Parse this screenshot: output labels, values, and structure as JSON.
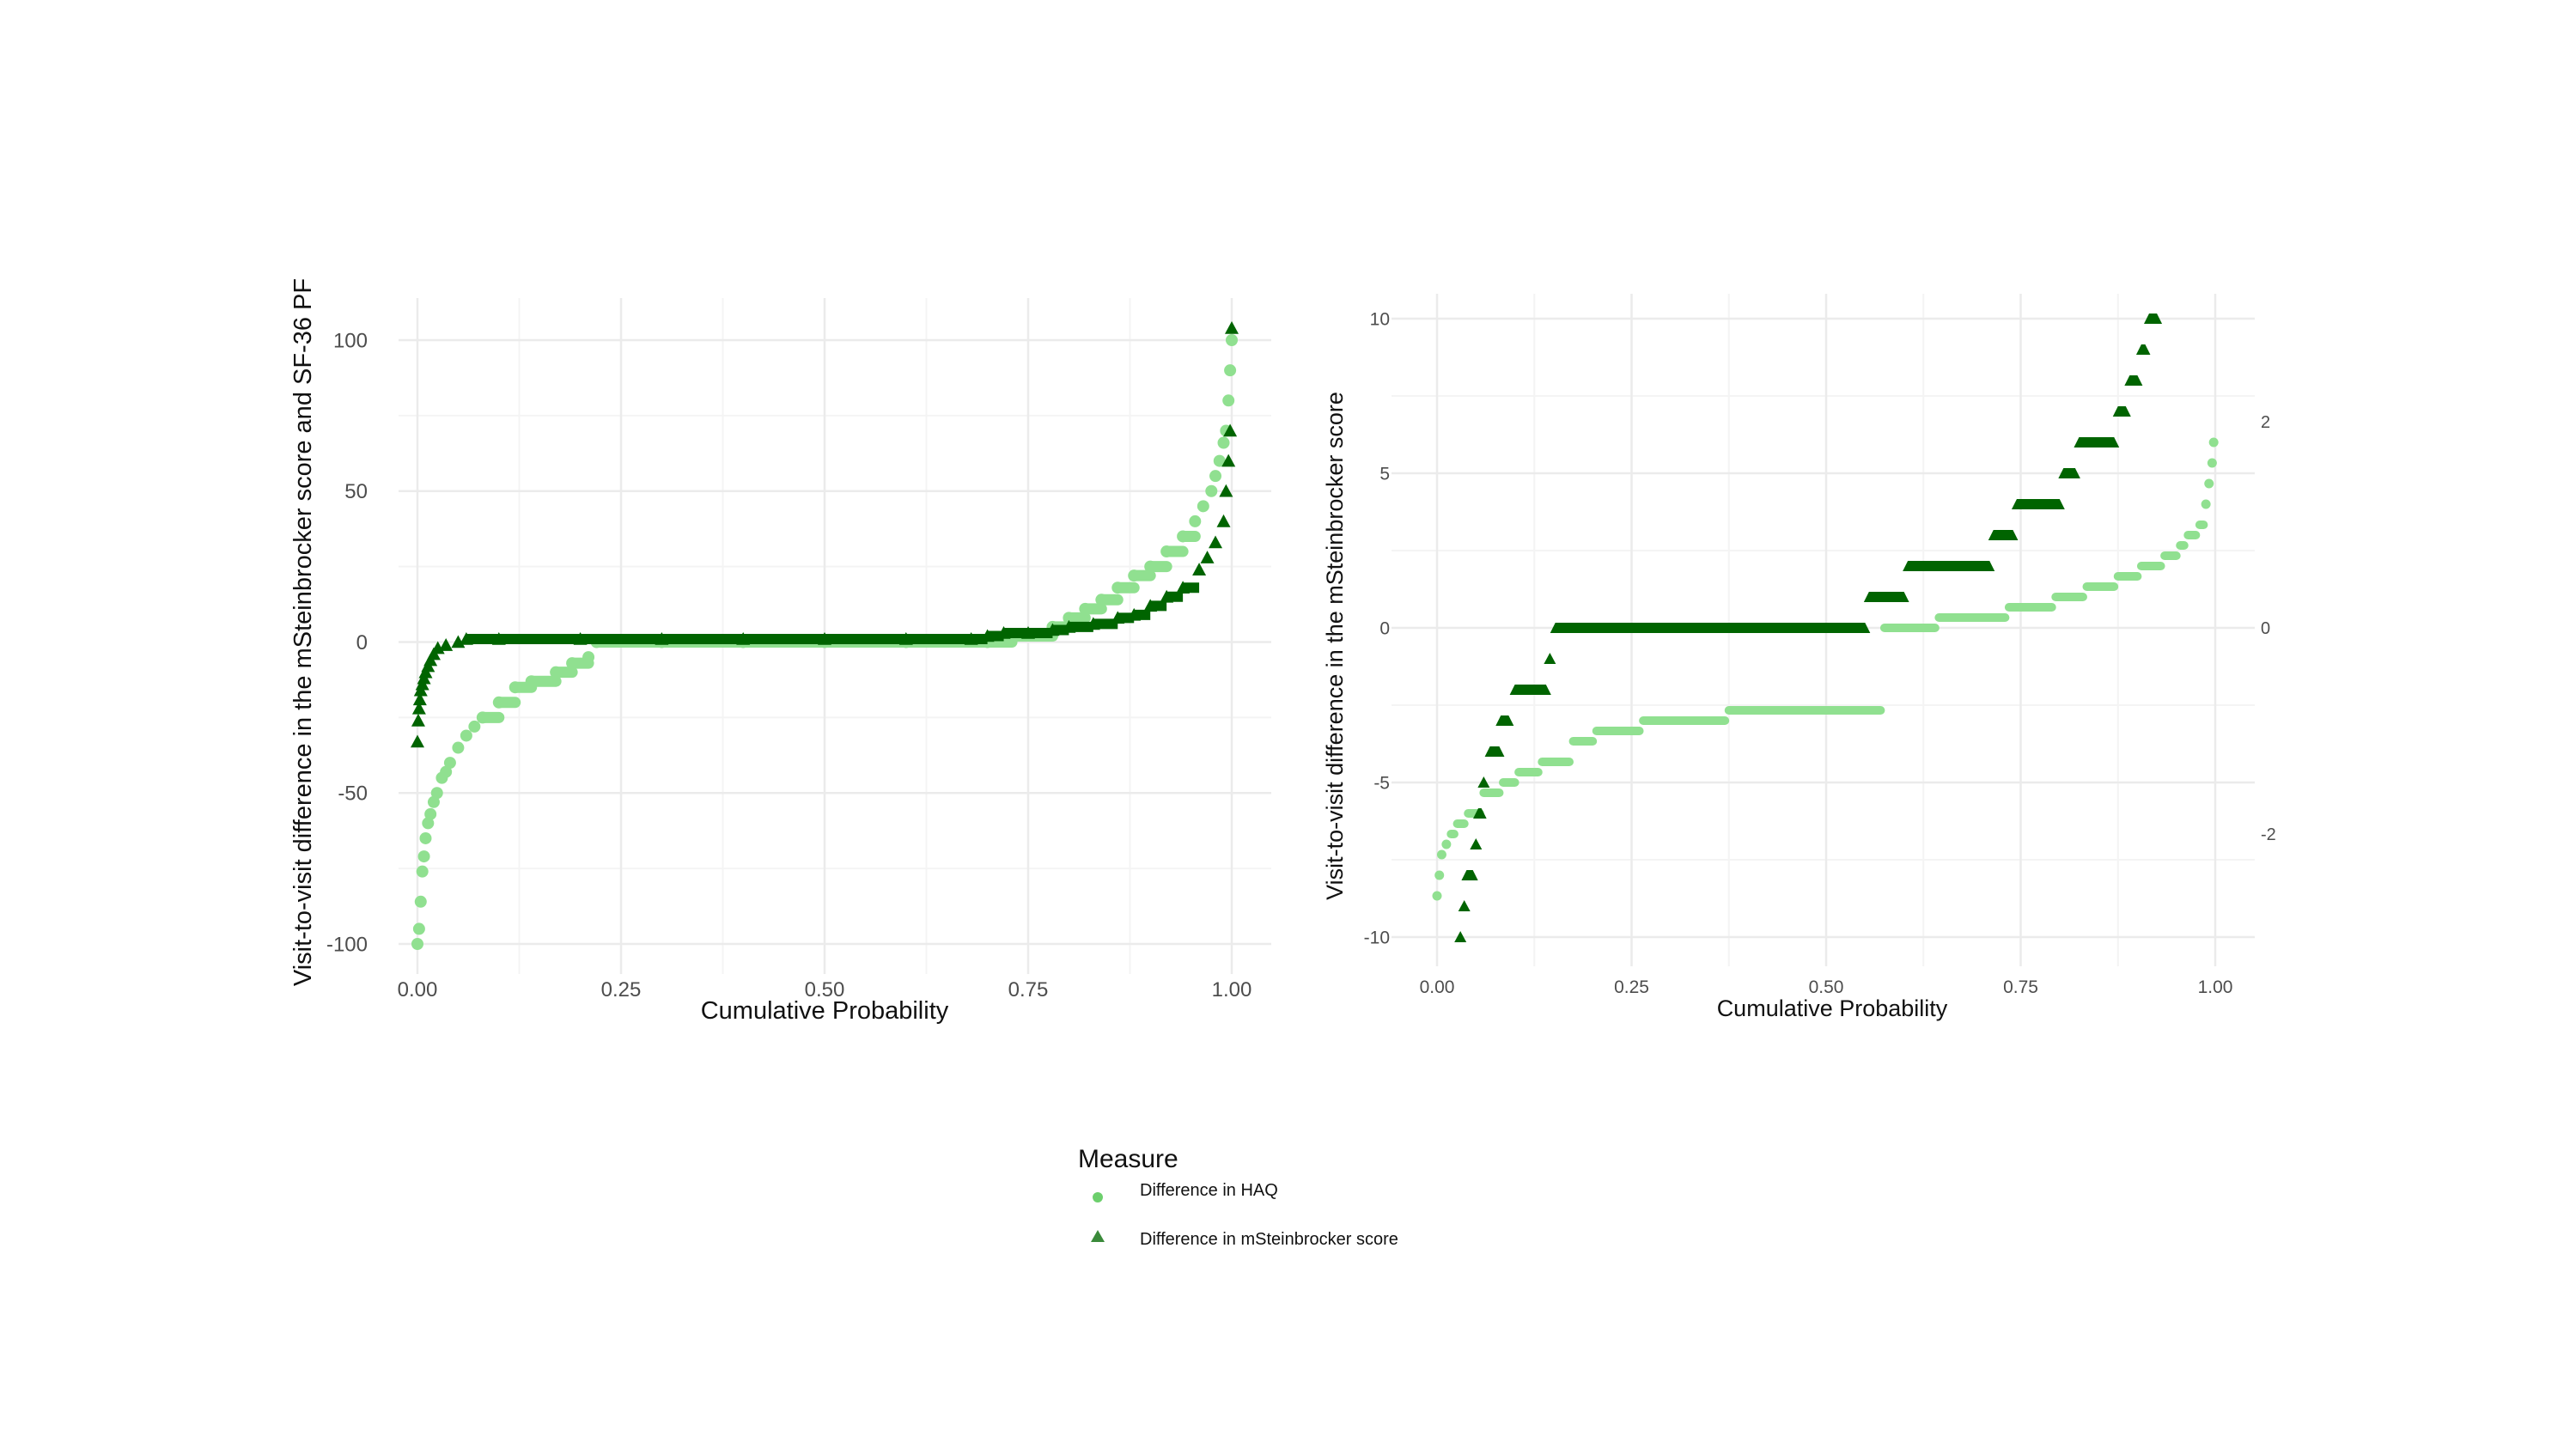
{
  "colors": {
    "light_green": "#90e090",
    "dark_green": "#006400",
    "grid": "#ebebeb"
  },
  "legend": {
    "title": "Measure",
    "items": [
      {
        "label": "Difference in HAQ",
        "shape": "circle",
        "color": "#6ccf6c"
      },
      {
        "label": "Difference in mSteinbrocker score",
        "shape": "triangle",
        "color": "#3a8a3a"
      }
    ]
  },
  "chart_data": [
    {
      "type": "scatter",
      "xlabel": "Cumulative Probability",
      "ylabel": "Visit-to-visit difference in the mSteinbrocker score and SF-36 PF",
      "xlim": [
        0,
        1
      ],
      "ylim": [
        -100,
        100
      ],
      "x_ticks": [
        "0.00",
        "0.25",
        "0.50",
        "0.75",
        "1.00"
      ],
      "y_ticks": [
        "-100",
        "-50",
        "0",
        "50",
        "100"
      ],
      "grid": true,
      "series": [
        {
          "name": "Difference in HAQ",
          "marker": "circle",
          "color": "#90e090",
          "points": [
            [
              0.0,
              -100
            ],
            [
              0.002,
              -95
            ],
            [
              0.004,
              -86
            ],
            [
              0.006,
              -76
            ],
            [
              0.008,
              -71
            ],
            [
              0.01,
              -65
            ],
            [
              0.013,
              -60
            ],
            [
              0.016,
              -57
            ],
            [
              0.02,
              -53
            ],
            [
              0.024,
              -50
            ],
            [
              0.03,
              -45
            ],
            [
              0.035,
              -43
            ],
            [
              0.04,
              -40
            ],
            [
              0.05,
              -35
            ],
            [
              0.06,
              -31
            ],
            [
              0.07,
              -28
            ],
            [
              0.08,
              -25
            ],
            [
              0.1,
              -20
            ],
            [
              0.12,
              -15
            ],
            [
              0.14,
              -13
            ],
            [
              0.17,
              -10
            ],
            [
              0.19,
              -7
            ],
            [
              0.21,
              -5
            ],
            [
              0.22,
              0
            ],
            [
              0.3,
              0
            ],
            [
              0.4,
              0
            ],
            [
              0.5,
              0
            ],
            [
              0.6,
              0
            ],
            [
              0.7,
              0
            ],
            [
              0.73,
              2
            ],
            [
              0.78,
              5
            ],
            [
              0.8,
              8
            ],
            [
              0.82,
              11
            ],
            [
              0.84,
              14
            ],
            [
              0.86,
              18
            ],
            [
              0.88,
              22
            ],
            [
              0.9,
              25
            ],
            [
              0.92,
              30
            ],
            [
              0.94,
              35
            ],
            [
              0.955,
              40
            ],
            [
              0.965,
              45
            ],
            [
              0.975,
              50
            ],
            [
              0.98,
              55
            ],
            [
              0.985,
              60
            ],
            [
              0.99,
              66
            ],
            [
              0.993,
              70
            ],
            [
              0.996,
              80
            ],
            [
              0.998,
              90
            ],
            [
              1.0,
              100
            ]
          ]
        },
        {
          "name": "Difference in mSteinbrocker score",
          "marker": "triangle",
          "color": "#006400",
          "points": [
            [
              0.0,
              -33
            ],
            [
              0.001,
              -26
            ],
            [
              0.002,
              -22
            ],
            [
              0.003,
              -19
            ],
            [
              0.004,
              -16
            ],
            [
              0.006,
              -14
            ],
            [
              0.008,
              -12
            ],
            [
              0.01,
              -10
            ],
            [
              0.013,
              -8
            ],
            [
              0.016,
              -6
            ],
            [
              0.02,
              -4
            ],
            [
              0.025,
              -2
            ],
            [
              0.035,
              -1
            ],
            [
              0.05,
              0
            ],
            [
              0.06,
              1
            ],
            [
              0.1,
              1
            ],
            [
              0.2,
              1
            ],
            [
              0.3,
              1
            ],
            [
              0.4,
              1
            ],
            [
              0.5,
              1
            ],
            [
              0.6,
              1
            ],
            [
              0.68,
              1
            ],
            [
              0.7,
              2
            ],
            [
              0.72,
              3
            ],
            [
              0.75,
              3
            ],
            [
              0.78,
              4
            ],
            [
              0.8,
              5
            ],
            [
              0.83,
              6
            ],
            [
              0.86,
              8
            ],
            [
              0.88,
              9
            ],
            [
              0.9,
              12
            ],
            [
              0.92,
              15
            ],
            [
              0.94,
              18
            ],
            [
              0.96,
              24
            ],
            [
              0.97,
              28
            ],
            [
              0.98,
              33
            ],
            [
              0.99,
              40
            ],
            [
              0.993,
              50
            ],
            [
              0.996,
              60
            ],
            [
              0.998,
              70
            ],
            [
              1.0,
              104
            ]
          ]
        }
      ]
    },
    {
      "type": "scatter",
      "xlabel": "Cumulative Probability",
      "ylabel": "Visit-to-visit difference in the mSteinbrocker score",
      "xlim": [
        0,
        1
      ],
      "ylim": [
        -10,
        10
      ],
      "y2lim": [
        -3,
        3
      ],
      "x_ticks": [
        "0.00",
        "0.25",
        "0.50",
        "0.75",
        "1.00"
      ],
      "y_ticks": [
        "-10",
        "-5",
        "0",
        "5",
        "10"
      ],
      "y2_ticks": [
        "-2",
        "0",
        "2"
      ],
      "grid": true,
      "series": [
        {
          "name": "Difference in mSteinbrocker score",
          "marker": "triangle",
          "axis": "left",
          "color": "#006400",
          "steps": [
            [
              0.03,
              0.03,
              -10
            ],
            [
              0.035,
              0.035,
              -9
            ],
            [
              0.038,
              0.046,
              -8
            ],
            [
              0.05,
              0.05,
              -7
            ],
            [
              0.053,
              0.057,
              -6
            ],
            [
              0.06,
              0.062,
              -5
            ],
            [
              0.068,
              0.08,
              -4
            ],
            [
              0.082,
              0.092,
              -3
            ],
            [
              0.1,
              0.14,
              -2
            ],
            [
              0.145,
              0.148,
              -1
            ],
            [
              0.152,
              0.55,
              0
            ],
            [
              0.555,
              0.6,
              1
            ],
            [
              0.605,
              0.71,
              2
            ],
            [
              0.715,
              0.74,
              3
            ],
            [
              0.745,
              0.8,
              4
            ],
            [
              0.805,
              0.82,
              5
            ],
            [
              0.825,
              0.87,
              6
            ],
            [
              0.875,
              0.885,
              7
            ],
            [
              0.89,
              0.9,
              8
            ],
            [
              0.905,
              0.91,
              9
            ],
            [
              0.915,
              0.925,
              10
            ]
          ]
        },
        {
          "name": "Difference in HAQ",
          "marker": "circle",
          "axis": "right",
          "color": "#90e090",
          "steps": [
            [
              0.0,
              0.0,
              -2.6
            ],
            [
              0.003,
              0.003,
              -2.4
            ],
            [
              0.006,
              0.008,
              -2.2
            ],
            [
              0.012,
              0.014,
              -2.1
            ],
            [
              0.018,
              0.022,
              -2.0
            ],
            [
              0.026,
              0.035,
              -1.9
            ],
            [
              0.04,
              0.055,
              -1.8
            ],
            [
              0.06,
              0.08,
              -1.6
            ],
            [
              0.085,
              0.1,
              -1.5
            ],
            [
              0.105,
              0.13,
              -1.4
            ],
            [
              0.135,
              0.17,
              -1.3
            ],
            [
              0.175,
              0.2,
              -1.1
            ],
            [
              0.205,
              0.26,
              -1.0
            ],
            [
              0.265,
              0.37,
              -0.9
            ],
            [
              0.375,
              0.57,
              -0.8
            ],
            [
              0.575,
              0.64,
              0
            ],
            [
              0.645,
              0.73,
              0.1
            ],
            [
              0.735,
              0.79,
              0.2
            ],
            [
              0.795,
              0.83,
              0.3
            ],
            [
              0.835,
              0.87,
              0.4
            ],
            [
              0.875,
              0.9,
              0.5
            ],
            [
              0.905,
              0.93,
              0.6
            ],
            [
              0.935,
              0.95,
              0.7
            ],
            [
              0.955,
              0.96,
              0.8
            ],
            [
              0.965,
              0.975,
              0.9
            ],
            [
              0.98,
              0.985,
              1.0
            ],
            [
              0.988,
              0.99,
              1.2
            ],
            [
              0.992,
              0.994,
              1.4
            ],
            [
              0.996,
              0.997,
              1.6
            ],
            [
              0.998,
              1.0,
              1.8
            ]
          ]
        }
      ]
    }
  ]
}
